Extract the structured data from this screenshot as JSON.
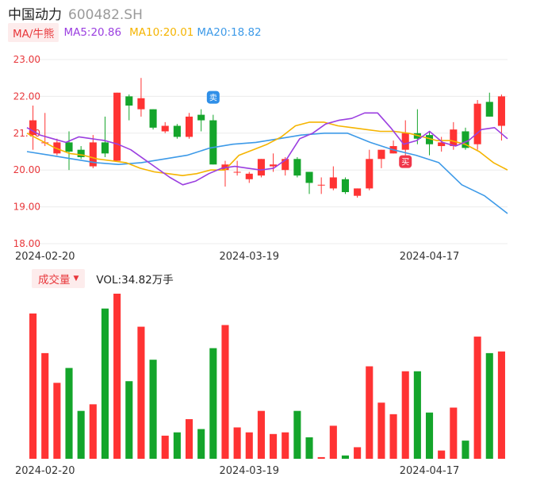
{
  "header": {
    "name": "中国动力",
    "code": "600482.SH"
  },
  "ma_legend": {
    "switch_label": "MA/牛熊",
    "ma5": "MA5:20.86",
    "ma10": "MA10:20.01",
    "ma20": "MA20:18.82"
  },
  "volume_legend": {
    "switch_label": "成交量",
    "value": "VOL:34.82万手"
  },
  "colors": {
    "up": "#ff3333",
    "down": "#14a52b",
    "ma5": "#9b3fe0",
    "ma10": "#f5b400",
    "ma20": "#3d9ae8",
    "axis_text": "#e8373b",
    "grid": "#ececec"
  },
  "markers": {
    "sell": "卖",
    "buy": "买"
  },
  "chart_data": [
    {
      "type": "candlestick",
      "y_ticks": [
        "23.00",
        "22.00",
        "21.00",
        "20.00",
        "19.00",
        "18.00"
      ],
      "ylim": [
        18,
        23
      ],
      "x_tick_labels": [
        "2024-02-20",
        "2024-03-19",
        "2024-04-17"
      ],
      "x_tick_indices": [
        1,
        18,
        33
      ],
      "candles": [
        {
          "o": 20.95,
          "h": 21.75,
          "l": 20.55,
          "c": 21.35
        },
        {
          "o": 20.75,
          "h": 21.55,
          "l": 20.65,
          "c": 20.75
        },
        {
          "o": 20.45,
          "h": 20.85,
          "l": 20.4,
          "c": 20.75
        },
        {
          "o": 20.75,
          "h": 21.05,
          "l": 20.0,
          "c": 20.5
        },
        {
          "o": 20.55,
          "h": 20.65,
          "l": 20.3,
          "c": 20.35
        },
        {
          "o": 20.1,
          "h": 20.95,
          "l": 20.05,
          "c": 20.75
        },
        {
          "o": 20.75,
          "h": 21.45,
          "l": 20.35,
          "c": 20.45
        },
        {
          "o": 20.25,
          "h": 22.1,
          "l": 20.25,
          "c": 22.1
        },
        {
          "o": 22.0,
          "h": 22.05,
          "l": 21.35,
          "c": 21.75
        },
        {
          "o": 21.65,
          "h": 22.5,
          "l": 21.45,
          "c": 21.95
        },
        {
          "o": 21.65,
          "h": 21.65,
          "l": 21.1,
          "c": 21.15
        },
        {
          "o": 21.05,
          "h": 21.3,
          "l": 21.0,
          "c": 21.2
        },
        {
          "o": 21.2,
          "h": 21.25,
          "l": 20.85,
          "c": 20.9
        },
        {
          "o": 20.9,
          "h": 21.55,
          "l": 20.85,
          "c": 21.45
        },
        {
          "o": 21.5,
          "h": 21.65,
          "l": 21.05,
          "c": 21.35
        },
        {
          "o": 21.35,
          "h": 21.5,
          "l": 20.15,
          "c": 20.15
        },
        {
          "o": 20.0,
          "h": 20.25,
          "l": 19.55,
          "c": 20.15
        },
        {
          "o": 19.95,
          "h": 20.25,
          "l": 19.85,
          "c": 19.95
        },
        {
          "o": 19.75,
          "h": 19.95,
          "l": 19.65,
          "c": 19.9
        },
        {
          "o": 19.85,
          "h": 20.3,
          "l": 19.8,
          "c": 20.3
        },
        {
          "o": 20.1,
          "h": 20.45,
          "l": 19.95,
          "c": 20.15
        },
        {
          "o": 20.0,
          "h": 20.35,
          "l": 19.85,
          "c": 20.3
        },
        {
          "o": 20.3,
          "h": 20.35,
          "l": 19.8,
          "c": 19.85
        },
        {
          "o": 19.95,
          "h": 19.95,
          "l": 19.35,
          "c": 19.65
        },
        {
          "o": 19.6,
          "h": 19.8,
          "l": 19.35,
          "c": 19.6
        },
        {
          "o": 19.5,
          "h": 20.1,
          "l": 19.45,
          "c": 19.8
        },
        {
          "o": 19.75,
          "h": 19.8,
          "l": 19.35,
          "c": 19.4
        },
        {
          "o": 19.3,
          "h": 19.5,
          "l": 19.25,
          "c": 19.5
        },
        {
          "o": 19.5,
          "h": 20.55,
          "l": 19.45,
          "c": 20.3
        },
        {
          "o": 20.3,
          "h": 20.55,
          "l": 20.05,
          "c": 20.55
        },
        {
          "o": 20.45,
          "h": 20.8,
          "l": 20.45,
          "c": 20.65
        },
        {
          "o": 20.55,
          "h": 21.35,
          "l": 20.4,
          "c": 21.0
        },
        {
          "o": 21.0,
          "h": 21.65,
          "l": 20.7,
          "c": 20.85
        },
        {
          "o": 20.95,
          "h": 21.05,
          "l": 20.4,
          "c": 20.7
        },
        {
          "o": 20.65,
          "h": 20.9,
          "l": 20.5,
          "c": 20.75
        },
        {
          "o": 20.65,
          "h": 21.3,
          "l": 20.55,
          "c": 21.1
        },
        {
          "o": 21.05,
          "h": 21.15,
          "l": 20.55,
          "c": 20.6
        },
        {
          "o": 20.7,
          "h": 21.9,
          "l": 20.55,
          "c": 21.8
        },
        {
          "o": 21.85,
          "h": 22.1,
          "l": 21.45,
          "c": 21.45
        },
        {
          "o": 21.2,
          "h": 22.05,
          "l": 20.8,
          "c": 22.0
        }
      ],
      "ma5": [
        21.15,
        20.95,
        20.85,
        20.75,
        20.9,
        20.85,
        20.8,
        20.7,
        20.55,
        20.3,
        20.05,
        19.8,
        19.6,
        19.7,
        19.9,
        20.05,
        20.1,
        20.05,
        20.0,
        20.05,
        20.3,
        20.85,
        21.0,
        21.25,
        21.35,
        21.4,
        21.55,
        21.55,
        21.15,
        20.7,
        20.8,
        21.05,
        20.75,
        20.65,
        20.8,
        21.1,
        21.15,
        20.85
      ],
      "ma10": [
        21.0,
        20.8,
        20.6,
        20.45,
        20.4,
        20.3,
        20.25,
        20.2,
        20.05,
        19.95,
        19.9,
        19.85,
        19.9,
        20.0,
        20.0,
        20.4,
        20.55,
        20.7,
        20.9,
        21.2,
        21.3,
        21.3,
        21.2,
        21.15,
        21.1,
        21.05,
        21.05,
        21.0,
        20.9,
        20.8,
        20.8,
        20.7,
        20.5,
        20.2,
        20.0
      ],
      "ma20": [
        20.5,
        20.4,
        20.3,
        20.2,
        20.15,
        20.2,
        20.3,
        20.4,
        20.6,
        20.7,
        20.75,
        20.85,
        20.95,
        21.0,
        21.0,
        20.75,
        20.55,
        20.4,
        20.2,
        19.6,
        19.3,
        18.82
      ],
      "annotations": [
        {
          "label": "卖",
          "index": 15
        },
        {
          "label": "买",
          "index": 31
        }
      ]
    },
    {
      "type": "bar",
      "name": "成交量",
      "x_tick_labels": [
        "2024-02-20",
        "2024-03-19",
        "2024-04-17"
      ],
      "values": [
        88,
        64,
        46,
        55,
        29,
        33,
        91,
        100,
        47,
        80,
        60,
        14,
        16,
        24,
        18,
        67,
        81,
        19,
        16,
        29,
        15,
        16,
        29,
        13,
        1,
        20,
        2,
        7,
        56,
        34,
        27,
        53,
        53,
        28,
        5,
        31,
        11,
        74,
        64,
        65
      ]
    }
  ]
}
